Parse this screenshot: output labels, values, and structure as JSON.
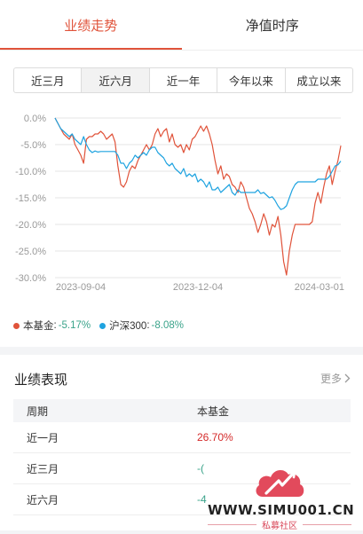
{
  "tabs": [
    {
      "label": "业绩走势",
      "active": true
    },
    {
      "label": "净值时序",
      "active": false
    }
  ],
  "ranges": [
    {
      "label": "近三月",
      "active": false
    },
    {
      "label": "近六月",
      "active": true
    },
    {
      "label": "近一年",
      "active": false
    },
    {
      "label": "今年以来",
      "active": false
    },
    {
      "label": "成立以来",
      "active": false
    }
  ],
  "chart_data": {
    "type": "line",
    "ylim": [
      -30,
      0
    ],
    "yticks": [
      "0.0%",
      "-5.0%",
      "-10.0%",
      "-15.0%",
      "-20.0%",
      "-25.0%",
      "-30.0%"
    ],
    "yticks_values": [
      0,
      -5,
      -10,
      -15,
      -20,
      -25,
      -30
    ],
    "xticks": [
      "2023-09-04",
      "2023-12-04",
      "2024-03-01"
    ],
    "grid": true,
    "series": [
      {
        "name": "本基金",
        "color": "#e0533a",
        "values": [
          0,
          -1,
          -2,
          -3,
          -3.5,
          -4,
          -3,
          -5,
          -6,
          -7,
          -8.5,
          -4,
          -3.5,
          -3.5,
          -3,
          -3,
          -2.5,
          -3,
          -4,
          -3.5,
          -3,
          -4.5,
          -9,
          -12.5,
          -13,
          -12,
          -10,
          -9,
          -9.5,
          -8,
          -7,
          -6,
          -5,
          -6,
          -5,
          -3,
          -2,
          -3.5,
          -2.5,
          -2,
          -4.5,
          -3,
          -5,
          -5.5,
          -5,
          -6.5,
          -5,
          -6,
          -4,
          -3.5,
          -2.5,
          -1.5,
          -2.5,
          -1.5,
          -3,
          -5,
          -8,
          -10.5,
          -9,
          -11.5,
          -10.5,
          -11,
          -12.5,
          -13,
          -14,
          -12,
          -13,
          -15,
          -17,
          -18,
          -19.5,
          -21.5,
          -20,
          -18,
          -19.5,
          -22,
          -20,
          -20.5,
          -18.5,
          -22,
          -27,
          -29.5,
          -25,
          -22,
          -20,
          -20,
          -20,
          -20,
          -20,
          -20,
          -19.5,
          -16,
          -14,
          -16,
          -13,
          -10.5,
          -9,
          -12.5,
          -10,
          -8,
          -5.2
        ]
      },
      {
        "name": "沪深300",
        "color": "#1fa3e0",
        "values": [
          0,
          -1,
          -2,
          -2.5,
          -3,
          -3.5,
          -3,
          -4,
          -4.5,
          -5,
          -3.5,
          -5,
          -6,
          -6.5,
          -6.2,
          -6.4,
          -6.3,
          -6.3,
          -6.3,
          -6.3,
          -6.3,
          -6.3,
          -7,
          -8.5,
          -8.5,
          -9.5,
          -8.5,
          -8,
          -7,
          -7.5,
          -7,
          -6.5,
          -7,
          -6,
          -5.5,
          -5.5,
          -6.5,
          -7,
          -7.5,
          -8.5,
          -9,
          -8.5,
          -9.5,
          -10,
          -10.5,
          -9.5,
          -11,
          -10.5,
          -11,
          -10.5,
          -12,
          -11.5,
          -12,
          -13,
          -12,
          -13.5,
          -13.5,
          -13,
          -14,
          -13.5,
          -13,
          -12.5,
          -14,
          -14.5,
          -13.5,
          -14,
          -14,
          -14,
          -14,
          -14,
          -14,
          -13.5,
          -14.2,
          -14,
          -14.5,
          -15,
          -14.8,
          -15.5,
          -16.5,
          -17.2,
          -17,
          -16.5,
          -15,
          -13.5,
          -12.5,
          -12,
          -12,
          -12,
          -12,
          -12,
          -12,
          -12,
          -11.5,
          -11.5,
          -11.5,
          -11.5,
          -11,
          -10,
          -9,
          -8.8,
          -8.1
        ]
      }
    ]
  },
  "legend": [
    {
      "name": "本基金",
      "sep": ":",
      "value": "-5.17%",
      "color": "#e0533a"
    },
    {
      "name": "沪深300",
      "sep": ":",
      "value": "-8.08%",
      "color": "#1fa3e0"
    }
  ],
  "performance": {
    "title": "业绩表现",
    "more_label": "更多",
    "columns": [
      "周期",
      "本基金"
    ],
    "rows": [
      {
        "period": "近一月",
        "value": "26.70%",
        "tone": "red"
      },
      {
        "period": "近三月",
        "value": "-(",
        "tone": "green"
      },
      {
        "period": "近六月",
        "value": "-4",
        "tone": "green"
      }
    ]
  },
  "watermark": {
    "text": "WWW.SIMU001.CN",
    "sub": "私募社区"
  }
}
